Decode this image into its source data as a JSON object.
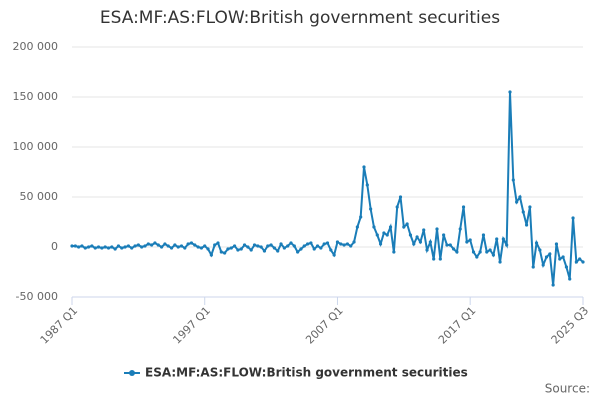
{
  "chart_data": {
    "type": "line",
    "title": "ESA:MF:AS:FLOW:British government securities",
    "source": "Source:",
    "categories": [
      "1987 Q1",
      null,
      null,
      null,
      null,
      null,
      null,
      null,
      null,
      null,
      null,
      null,
      null,
      null,
      null,
      null,
      null,
      null,
      null,
      null,
      null,
      null,
      null,
      null,
      null,
      null,
      null,
      null,
      null,
      null,
      null,
      null,
      null,
      null,
      null,
      null,
      null,
      null,
      null,
      null,
      "1997 Q1",
      null,
      null,
      null,
      null,
      null,
      null,
      null,
      null,
      null,
      null,
      null,
      null,
      null,
      null,
      null,
      null,
      null,
      null,
      null,
      null,
      null,
      null,
      null,
      null,
      null,
      null,
      null,
      null,
      null,
      null,
      null,
      null,
      null,
      null,
      null,
      null,
      null,
      null,
      null,
      "2007 Q1",
      null,
      null,
      null,
      null,
      null,
      null,
      null,
      null,
      null,
      null,
      null,
      null,
      null,
      null,
      null,
      null,
      null,
      null,
      null,
      null,
      null,
      null,
      null,
      null,
      null,
      null,
      null,
      null,
      null,
      null,
      null,
      null,
      null,
      null,
      null,
      null,
      null,
      null,
      null,
      "2017 Q1",
      null,
      null,
      null,
      null,
      null,
      null,
      null,
      null,
      null,
      null,
      null,
      null,
      null,
      null,
      null,
      null,
      null,
      null,
      null,
      null,
      null,
      null,
      null,
      null,
      null,
      null,
      null,
      null,
      null,
      null,
      null,
      null,
      null,
      "2025 Q3"
    ],
    "series": [
      {
        "name": "ESA:MF:AS:FLOW:British government securities",
        "color": "#1a7db8",
        "values": [
          1000,
          1000,
          0,
          1000,
          -1000,
          0,
          1000,
          -1000,
          0,
          -1000,
          0,
          -1000,
          0,
          -2000,
          1000,
          -1000,
          0,
          1000,
          -1000,
          1000,
          2000,
          0,
          1000,
          3000,
          2000,
          4000,
          2000,
          0,
          3000,
          1000,
          -1000,
          2000,
          0,
          1000,
          -1000,
          3000,
          4000,
          2000,
          0,
          -1000,
          1000,
          -2000,
          -8000,
          2000,
          4000,
          -5000,
          -6000,
          -2000,
          -1000,
          1000,
          -3000,
          -2000,
          2000,
          0,
          -3000,
          2000,
          1000,
          0,
          -4000,
          1000,
          2000,
          -1000,
          -4000,
          3000,
          -1000,
          1000,
          4000,
          1000,
          -5000,
          -2000,
          1000,
          3000,
          4000,
          -2000,
          1000,
          -1000,
          3000,
          4000,
          -3000,
          -8000,
          5000,
          3000,
          2000,
          3000,
          1000,
          5000,
          20000,
          30000,
          80000,
          62000,
          38000,
          20000,
          12000,
          3000,
          14000,
          12000,
          20000,
          -5000,
          40000,
          50000,
          20000,
          23000,
          12000,
          3000,
          10000,
          5000,
          17000,
          -3000,
          5000,
          -12000,
          18000,
          -12000,
          12000,
          2000,
          2000,
          -2000,
          -5000,
          18000,
          40000,
          5000,
          7000,
          -5000,
          -10000,
          -5000,
          12000,
          -5000,
          -3000,
          -8000,
          8000,
          -15000,
          8000,
          2000,
          155000,
          67000,
          45000,
          50000,
          35000,
          22000,
          40000,
          -20000,
          4000,
          -3000,
          -18000,
          -10000,
          -7000,
          -38000,
          3000,
          -12000,
          -10000,
          -20000,
          -32000,
          29000,
          -15000,
          -12000,
          -15000
        ]
      }
    ],
    "ylim": [
      -50000,
      200000
    ],
    "yticks": [
      {
        "value": -50000,
        "label": "-50 000"
      },
      0,
      {
        "value": 50000,
        "label": "50 000"
      },
      {
        "value": 100000,
        "label": "100 000"
      },
      {
        "value": 150000,
        "label": "150 000"
      },
      {
        "value": 200000,
        "label": "200 000"
      }
    ],
    "grid": true,
    "legend": "bottom"
  }
}
